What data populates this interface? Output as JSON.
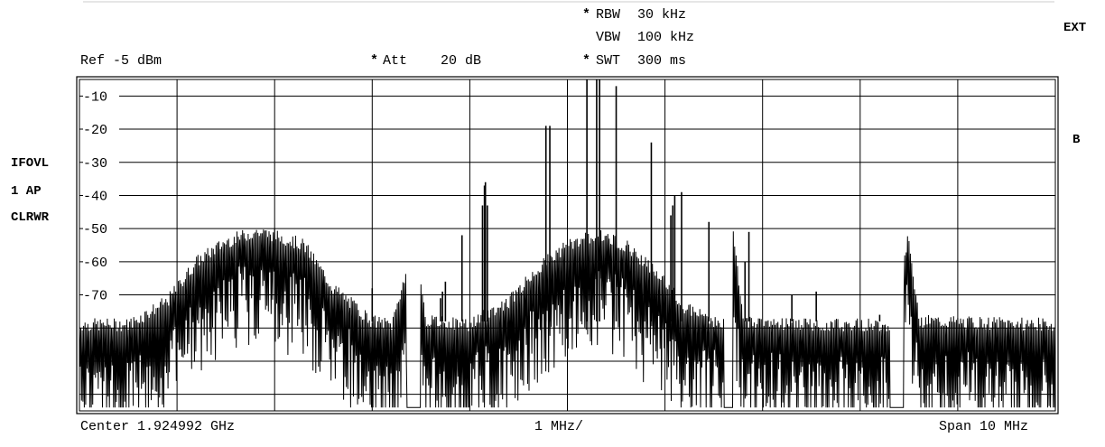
{
  "settings": {
    "rbw_label": "RBW",
    "rbw_value": "30 kHz",
    "rbw_star": "*",
    "vbw_label": "VBW",
    "vbw_value": "100 kHz",
    "swt_label": "SWT",
    "swt_value": "300 ms",
    "swt_star": "*",
    "ref": "Ref -5 dBm",
    "att_label": "Att",
    "att_value": "20 dB",
    "att_star": "*"
  },
  "side_labels": {
    "ext": "EXT",
    "b": "B",
    "ifovl": "IFOVL",
    "trace_mode": "1 AP",
    "clrwr": "CLRWR"
  },
  "footer": {
    "center": "Center 1.924992 GHz",
    "per_div": "1 MHz/",
    "span": "Span 10 MHz"
  },
  "chart_data": {
    "type": "line",
    "title": "",
    "xlabel": "",
    "ylabel": "",
    "xlim": [
      0,
      10
    ],
    "ylim": [
      -105,
      -5
    ],
    "grid": true,
    "y_ticks": [
      -10,
      -20,
      -30,
      -40,
      -50,
      -60,
      -70
    ],
    "y_tick_labels": [
      "-10",
      "-20",
      "-30",
      "-40",
      "-50",
      "-60",
      "-70"
    ],
    "series": [
      {
        "values_description_units": "dBm vs MHz offset from left edge",
        "envelope": [
          {
            "x": 0.0,
            "y": -79
          },
          {
            "x": 0.5,
            "y": -79
          },
          {
            "x": 0.9,
            "y": -72
          },
          {
            "x": 1.2,
            "y": -60
          },
          {
            "x": 1.5,
            "y": -54
          },
          {
            "x": 1.8,
            "y": -51
          },
          {
            "x": 2.0,
            "y": -52
          },
          {
            "x": 2.3,
            "y": -55
          },
          {
            "x": 2.6,
            "y": -68
          },
          {
            "x": 3.0,
            "y": -78
          },
          {
            "x": 3.2,
            "y": -79
          },
          {
            "x": 3.45,
            "y": -52
          },
          {
            "x": 3.55,
            "y": -78
          },
          {
            "x": 4.0,
            "y": -79
          },
          {
            "x": 4.4,
            "y": -72
          },
          {
            "x": 4.7,
            "y": -62
          },
          {
            "x": 5.0,
            "y": -55
          },
          {
            "x": 5.3,
            "y": -52
          },
          {
            "x": 5.6,
            "y": -55
          },
          {
            "x": 5.9,
            "y": -63
          },
          {
            "x": 6.2,
            "y": -74
          },
          {
            "x": 6.6,
            "y": -79
          },
          {
            "x": 6.7,
            "y": -52
          },
          {
            "x": 6.8,
            "y": -78
          },
          {
            "x": 7.5,
            "y": -79
          },
          {
            "x": 8.3,
            "y": -79
          },
          {
            "x": 8.5,
            "y": -52
          },
          {
            "x": 8.6,
            "y": -78
          },
          {
            "x": 10.0,
            "y": -79
          }
        ],
        "spurs": [
          {
            "x": 3.0,
            "y": -68
          },
          {
            "x": 3.7,
            "y": -71
          },
          {
            "x": 3.72,
            "y": -69
          },
          {
            "x": 3.75,
            "y": -66
          },
          {
            "x": 3.92,
            "y": -52
          },
          {
            "x": 4.13,
            "y": -43
          },
          {
            "x": 4.15,
            "y": -37
          },
          {
            "x": 4.16,
            "y": -36
          },
          {
            "x": 4.18,
            "y": -43
          },
          {
            "x": 4.78,
            "y": -19
          },
          {
            "x": 4.82,
            "y": -19
          },
          {
            "x": 5.2,
            "y": -5
          },
          {
            "x": 5.3,
            "y": -5
          },
          {
            "x": 5.33,
            "y": -5
          },
          {
            "x": 5.5,
            "y": -7
          },
          {
            "x": 5.86,
            "y": -24
          },
          {
            "x": 6.06,
            "y": -46
          },
          {
            "x": 6.08,
            "y": -43
          },
          {
            "x": 6.1,
            "y": -40
          },
          {
            "x": 6.17,
            "y": -39
          },
          {
            "x": 6.45,
            "y": -48
          },
          {
            "x": 6.82,
            "y": -60
          },
          {
            "x": 6.86,
            "y": -51
          },
          {
            "x": 7.3,
            "y": -70
          },
          {
            "x": 7.55,
            "y": -69
          },
          {
            "x": 8.2,
            "y": -76
          }
        ]
      }
    ]
  }
}
